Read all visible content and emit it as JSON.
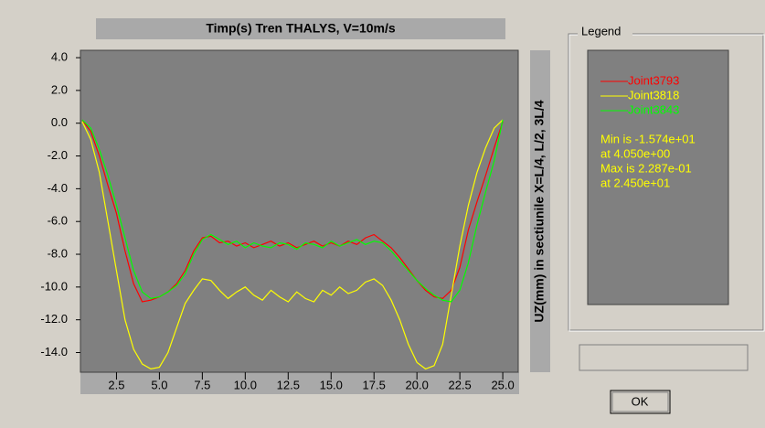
{
  "chart_data": {
    "type": "line",
    "title": "Timp(s)  Tren THALYS, V=10m/s",
    "y_label": "UZ(mm) in sectiunile X=L/4, L/2, 3L/4",
    "x": [
      0.5,
      1,
      1.5,
      2,
      2.5,
      3,
      3.5,
      4,
      4.5,
      5,
      5.5,
      6,
      6.5,
      7,
      7.5,
      8,
      8.5,
      9,
      9.5,
      10,
      10.5,
      11,
      11.5,
      12,
      12.5,
      13,
      13.5,
      14,
      14.5,
      15,
      15.5,
      16,
      16.5,
      17,
      17.5,
      18,
      18.5,
      19,
      19.5,
      20,
      20.5,
      21,
      21.5,
      22,
      22.5,
      23,
      23.5,
      24,
      24.5,
      25
    ],
    "series": [
      {
        "name": "Joint3793",
        "color": "#ff0000",
        "values": [
          0.2,
          -0.5,
          -2,
          -3.8,
          -5.5,
          -7.8,
          -9.8,
          -10.9,
          -10.8,
          -10.6,
          -10.3,
          -9.8,
          -9,
          -7.8,
          -7.0,
          -6.9,
          -7.3,
          -7.2,
          -7.5,
          -7.3,
          -7.6,
          -7.4,
          -7.2,
          -7.5,
          -7.3,
          -7.6,
          -7.4,
          -7.2,
          -7.5,
          -7.3,
          -7.5,
          -7.2,
          -7.4,
          -7.0,
          -6.8,
          -7.2,
          -7.6,
          -8.2,
          -8.9,
          -9.6,
          -10.2,
          -10.6,
          -10.7,
          -10.2,
          -8.8,
          -6.5,
          -4.8,
          -3.2,
          -1.5,
          0.1
        ]
      },
      {
        "name": "Joint3818",
        "color": "#ffff00",
        "values": [
          0.1,
          -1,
          -3,
          -6,
          -9,
          -12,
          -13.8,
          -14.7,
          -15.0,
          -14.9,
          -14.0,
          -12.5,
          -11.0,
          -10.2,
          -9.5,
          -9.6,
          -10.2,
          -10.7,
          -10.3,
          -10.0,
          -10.5,
          -10.8,
          -10.2,
          -10.6,
          -10.9,
          -10.3,
          -10.7,
          -10.9,
          -10.2,
          -10.5,
          -10.0,
          -10.4,
          -10.2,
          -9.7,
          -9.5,
          -9.9,
          -10.8,
          -12,
          -13.5,
          -14.6,
          -15.0,
          -14.8,
          -13.5,
          -10.5,
          -7.5,
          -5,
          -3,
          -1.5,
          -0.3,
          0.2
        ]
      },
      {
        "name": "Joint3843",
        "color": "#00ff00",
        "values": [
          0.2,
          -0.3,
          -1.6,
          -3.2,
          -5,
          -7,
          -9,
          -10.3,
          -10.7,
          -10.6,
          -10.3,
          -9.9,
          -9.2,
          -8,
          -7.1,
          -6.8,
          -7.1,
          -7.4,
          -7.2,
          -7.6,
          -7.3,
          -7.5,
          -7.6,
          -7.3,
          -7.4,
          -7.7,
          -7.3,
          -7.4,
          -7.6,
          -7.2,
          -7.5,
          -7.3,
          -7.1,
          -7.4,
          -7.2,
          -7.3,
          -7.8,
          -8.4,
          -9,
          -9.6,
          -10.1,
          -10.5,
          -10.8,
          -10.9,
          -10.2,
          -8.5,
          -6.2,
          -4.2,
          -2.3,
          0.2
        ]
      }
    ],
    "xlim": [
      0.4,
      25.9
    ],
    "ylim": [
      -15.2,
      4.45
    ],
    "xticks": [
      2.5,
      {
        "value": 5,
        "label": "5.0"
      },
      7.5,
      {
        "value": 10,
        "label": "10.0"
      },
      12.5,
      {
        "value": 15,
        "label": "15.0"
      },
      17.5,
      {
        "value": 20,
        "label": "20.0"
      },
      22.5,
      {
        "value": 25,
        "label": "25.0"
      }
    ],
    "yticks": [
      {
        "value": 4,
        "label": "4.0"
      },
      {
        "value": 2,
        "label": "2.0"
      },
      {
        "value": 0,
        "label": "0.0"
      },
      {
        "value": -2,
        "label": "-2.0"
      },
      {
        "value": -4,
        "label": "-4.0"
      },
      {
        "value": -6,
        "label": "-6.0"
      },
      {
        "value": -8,
        "label": "-8.0"
      },
      {
        "value": -10,
        "label": "-10.0"
      },
      {
        "value": -12,
        "label": "-12.0"
      },
      {
        "value": -14,
        "label": "-14.0"
      }
    ],
    "grid": false,
    "background": "#808080"
  },
  "legend_box": {
    "title": "Legend",
    "info": [
      "Min is -1.574e+01",
      "at 4.050e+00",
      "Max is 2.287e-01",
      "at 2.450e+01"
    ],
    "info_color": "#ffff00"
  },
  "button": "OK"
}
